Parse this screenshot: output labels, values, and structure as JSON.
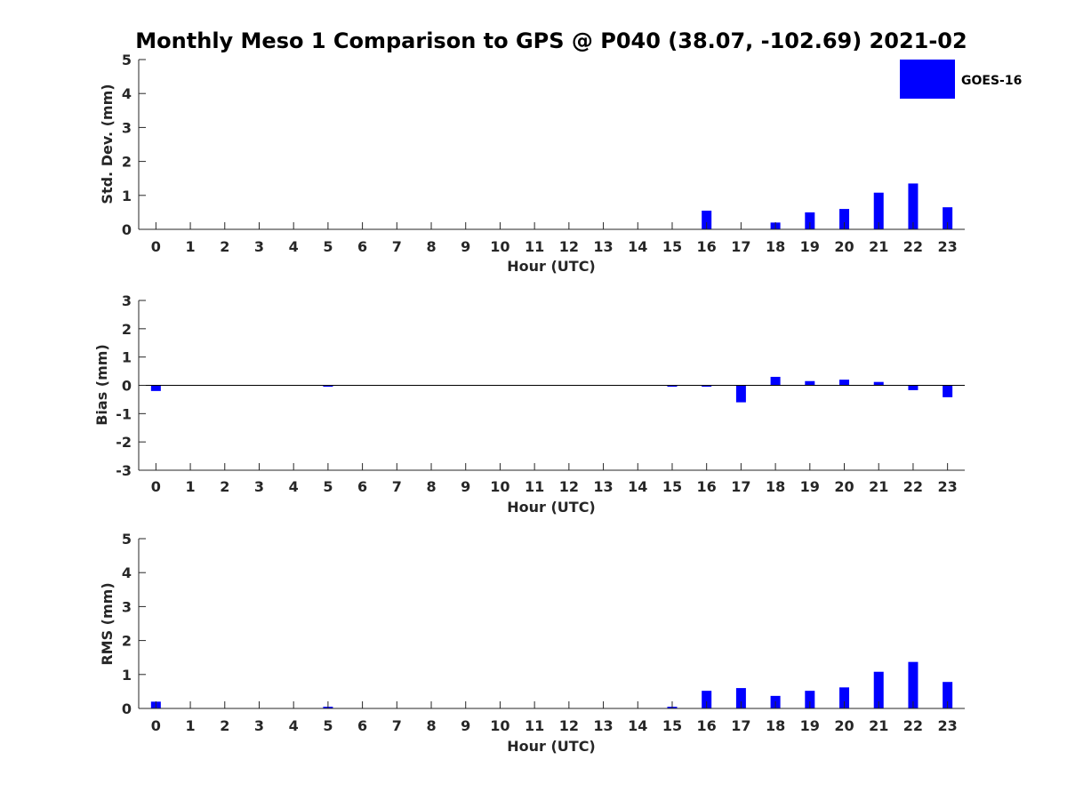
{
  "colors": {
    "bar": "#0000FF",
    "axis": "#262626",
    "background": "#FFFFFF"
  },
  "chart_data": [
    {
      "type": "bar",
      "title": "Monthly Meso 1 Comparison to GPS @ P040 (38.07, -102.69) 2021-02",
      "legend": {
        "entries": [
          "GOES-16"
        ],
        "placement": "top-right"
      },
      "xlabel": "Hour (UTC)",
      "ylabel": "Std. Dev. (mm)",
      "xlim": [
        -0.5,
        23.5
      ],
      "ylim": [
        0,
        5
      ],
      "yticks": [
        0,
        1,
        2,
        3,
        4,
        5
      ],
      "categories": [
        "0",
        "1",
        "2",
        "3",
        "4",
        "5",
        "6",
        "7",
        "8",
        "9",
        "10",
        "11",
        "12",
        "13",
        "14",
        "15",
        "16",
        "17",
        "18",
        "19",
        "20",
        "21",
        "22",
        "23"
      ],
      "series": [
        {
          "name": "GOES-16",
          "values": [
            0,
            0,
            0,
            0,
            0,
            0,
            0,
            0,
            0,
            0,
            0,
            0,
            0,
            0,
            0,
            0,
            0.55,
            0,
            0.2,
            0.5,
            0.6,
            1.08,
            1.35,
            0.65
          ]
        }
      ]
    },
    {
      "type": "bar",
      "xlabel": "Hour (UTC)",
      "ylabel": "Bias (mm)",
      "xlim": [
        -0.5,
        23.5
      ],
      "ylim": [
        -3,
        3
      ],
      "yticks": [
        -3,
        -2,
        -1,
        0,
        1,
        2,
        3
      ],
      "zero_line": true,
      "categories": [
        "0",
        "1",
        "2",
        "3",
        "4",
        "5",
        "6",
        "7",
        "8",
        "9",
        "10",
        "11",
        "12",
        "13",
        "14",
        "15",
        "16",
        "17",
        "18",
        "19",
        "20",
        "21",
        "22",
        "23"
      ],
      "series": [
        {
          "name": "GOES-16",
          "values": [
            -0.2,
            0,
            0,
            0,
            0,
            -0.05,
            0,
            0,
            0,
            0,
            0,
            0,
            0,
            0,
            0,
            -0.05,
            -0.05,
            -0.6,
            0.3,
            0.15,
            0.2,
            0.12,
            -0.17,
            -0.42
          ]
        }
      ]
    },
    {
      "type": "bar",
      "xlabel": "Hour (UTC)",
      "ylabel": "RMS (mm)",
      "xlim": [
        -0.5,
        23.5
      ],
      "ylim": [
        0,
        5
      ],
      "yticks": [
        0,
        1,
        2,
        3,
        4,
        5
      ],
      "categories": [
        "0",
        "1",
        "2",
        "3",
        "4",
        "5",
        "6",
        "7",
        "8",
        "9",
        "10",
        "11",
        "12",
        "13",
        "14",
        "15",
        "16",
        "17",
        "18",
        "19",
        "20",
        "21",
        "22",
        "23"
      ],
      "series": [
        {
          "name": "GOES-16",
          "values": [
            0.2,
            0,
            0,
            0,
            0,
            0.05,
            0,
            0,
            0,
            0,
            0,
            0,
            0,
            0,
            0,
            0.05,
            0.52,
            0.6,
            0.37,
            0.52,
            0.62,
            1.08,
            1.37,
            0.78
          ]
        }
      ]
    }
  ]
}
